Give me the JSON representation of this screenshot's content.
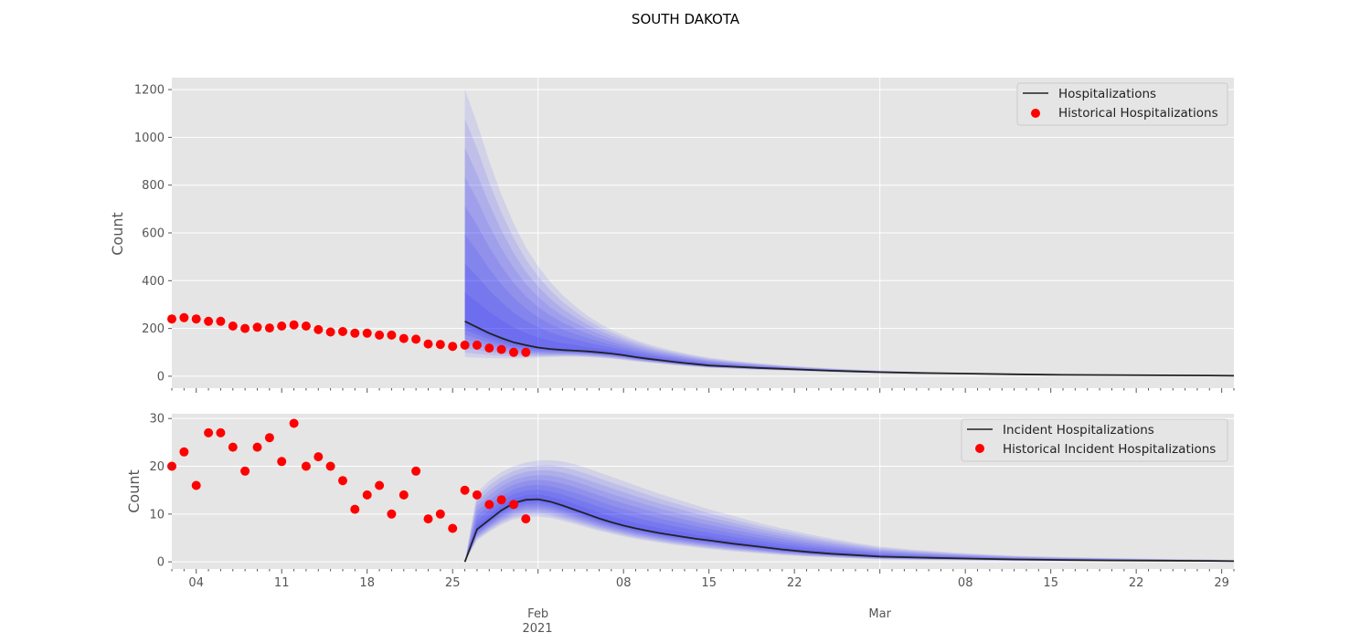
{
  "figure": {
    "suptitle": "SOUTH DAKOTA",
    "x_tick_labels": [
      "04",
      "11",
      "18",
      "25",
      "Feb",
      "08",
      "15",
      "22",
      "Mar",
      "08",
      "15",
      "22",
      "29"
    ],
    "x_year_label": "2021"
  },
  "chart_data": [
    {
      "type": "line",
      "panel": "top",
      "title": "",
      "xlabel": "",
      "ylabel": "Count",
      "ylim": [
        -50,
        1250
      ],
      "yticks": [
        0,
        200,
        400,
        600,
        800,
        1000,
        1200
      ],
      "x_axis": {
        "type": "date",
        "start": "2021-01-02",
        "end": "2021-03-30"
      },
      "grid": true,
      "legend_placement": "upper right",
      "legend": [
        "Hospitalizations",
        "Historical Hospitalizations"
      ],
      "colors": {
        "line": "#222222",
        "points": "#ff0000",
        "band": "#0000ff",
        "background": "#e5e5e5"
      },
      "series": [
        {
          "name": "Hospitalizations",
          "kind": "line",
          "x": [
            "2021-01-26",
            "2021-01-27",
            "2021-01-28",
            "2021-01-29",
            "2021-01-30",
            "2021-01-31",
            "2021-02-01",
            "2021-02-02",
            "2021-02-03",
            "2021-02-04",
            "2021-02-05",
            "2021-02-06",
            "2021-02-07",
            "2021-02-08",
            "2021-02-09",
            "2021-02-10",
            "2021-02-11",
            "2021-02-12",
            "2021-02-13",
            "2021-02-14",
            "2021-02-15",
            "2021-02-17",
            "2021-02-19",
            "2021-02-21",
            "2021-02-23",
            "2021-02-25",
            "2021-02-27",
            "2021-03-01",
            "2021-03-04",
            "2021-03-08",
            "2021-03-12",
            "2021-03-16",
            "2021-03-20",
            "2021-03-24",
            "2021-03-28",
            "2021-03-30"
          ],
          "y": [
            230,
            205,
            180,
            160,
            142,
            130,
            120,
            114,
            110,
            107,
            104,
            100,
            95,
            88,
            80,
            73,
            67,
            61,
            55,
            50,
            45,
            40,
            35,
            31,
            27,
            23,
            20,
            17,
            14,
            11,
            8,
            6,
            5,
            4,
            3,
            2
          ]
        },
        {
          "name": "Historical Hospitalizations",
          "kind": "scatter",
          "x": [
            "2021-01-02",
            "2021-01-03",
            "2021-01-04",
            "2021-01-05",
            "2021-01-06",
            "2021-01-07",
            "2021-01-08",
            "2021-01-09",
            "2021-01-10",
            "2021-01-11",
            "2021-01-12",
            "2021-01-13",
            "2021-01-14",
            "2021-01-15",
            "2021-01-16",
            "2021-01-17",
            "2021-01-18",
            "2021-01-19",
            "2021-01-20",
            "2021-01-21",
            "2021-01-22",
            "2021-01-23",
            "2021-01-24",
            "2021-01-25",
            "2021-01-26",
            "2021-01-27",
            "2021-01-28",
            "2021-01-29",
            "2021-01-30",
            "2021-01-31"
          ],
          "y": [
            240,
            245,
            240,
            230,
            230,
            210,
            200,
            205,
            202,
            210,
            215,
            210,
            195,
            185,
            187,
            180,
            180,
            172,
            172,
            158,
            155,
            135,
            133,
            125,
            130,
            130,
            118,
            112,
            100,
            100
          ]
        }
      ],
      "uncertainty_band": {
        "x": [
          "2021-01-26",
          "2021-01-27",
          "2021-01-28",
          "2021-01-29",
          "2021-01-30",
          "2021-01-31",
          "2021-02-01",
          "2021-02-02",
          "2021-02-03",
          "2021-02-04",
          "2021-02-05",
          "2021-02-06",
          "2021-02-07",
          "2021-02-08",
          "2021-02-09",
          "2021-02-10",
          "2021-02-11",
          "2021-02-12",
          "2021-02-13",
          "2021-02-14",
          "2021-02-15",
          "2021-02-17",
          "2021-02-19",
          "2021-02-21",
          "2021-02-23",
          "2021-02-25",
          "2021-02-27",
          "2021-03-01",
          "2021-03-04",
          "2021-03-08",
          "2021-03-12",
          "2021-03-16",
          "2021-03-20",
          "2021-03-24",
          "2021-03-28",
          "2021-03-30"
        ],
        "upper": [
          1200,
          1060,
          900,
          760,
          640,
          540,
          460,
          395,
          340,
          295,
          255,
          222,
          195,
          172,
          152,
          135,
          120,
          108,
          97,
          87,
          78,
          65,
          55,
          46,
          39,
          33,
          28,
          24,
          19,
          14,
          10,
          8,
          6,
          5,
          4,
          3
        ],
        "lower": [
          80,
          78,
          76,
          75,
          75,
          76,
          78,
          80,
          82,
          82,
          80,
          77,
          73,
          68,
          62,
          57,
          52,
          47,
          43,
          39,
          35,
          31,
          27,
          24,
          21,
          18,
          15,
          13,
          11,
          8,
          6,
          4,
          3,
          3,
          2,
          1
        ]
      }
    },
    {
      "type": "line",
      "panel": "bottom",
      "title": "",
      "xlabel": "",
      "ylabel": "Count",
      "ylim": [
        -1.5,
        31
      ],
      "yticks": [
        0,
        10,
        20,
        30
      ],
      "x_axis": {
        "type": "date",
        "start": "2021-01-02",
        "end": "2021-03-30"
      },
      "grid": true,
      "legend_placement": "upper right",
      "legend": [
        "Incident Hospitalizations",
        "Historical Incident Hospitalizations"
      ],
      "colors": {
        "line": "#222222",
        "points": "#ff0000",
        "band": "#0000ff",
        "background": "#e5e5e5"
      },
      "series": [
        {
          "name": "Incident Hospitalizations",
          "kind": "line",
          "x": [
            "2021-01-26",
            "2021-01-27",
            "2021-01-28",
            "2021-01-29",
            "2021-01-30",
            "2021-01-31",
            "2021-02-01",
            "2021-02-02",
            "2021-02-03",
            "2021-02-04",
            "2021-02-05",
            "2021-02-06",
            "2021-02-07",
            "2021-02-08",
            "2021-02-09",
            "2021-02-10",
            "2021-02-11",
            "2021-02-12",
            "2021-02-13",
            "2021-02-14",
            "2021-02-15",
            "2021-02-17",
            "2021-02-19",
            "2021-02-21",
            "2021-02-23",
            "2021-02-25",
            "2021-02-27",
            "2021-03-01",
            "2021-03-04",
            "2021-03-08",
            "2021-03-12",
            "2021-03-16",
            "2021-03-20",
            "2021-03-24",
            "2021-03-28",
            "2021-03-30"
          ],
          "y": [
            0,
            6.8,
            8.8,
            10.8,
            12.3,
            13.0,
            13.1,
            12.6,
            11.8,
            10.9,
            10.0,
            9.1,
            8.3,
            7.6,
            7.0,
            6.5,
            6.0,
            5.6,
            5.2,
            4.8,
            4.5,
            3.8,
            3.2,
            2.6,
            2.1,
            1.7,
            1.4,
            1.1,
            0.9,
            0.7,
            0.5,
            0.4,
            0.3,
            0.25,
            0.2,
            0.15
          ]
        },
        {
          "name": "Historical Incident Hospitalizations",
          "kind": "scatter",
          "x": [
            "2021-01-02",
            "2021-01-03",
            "2021-01-04",
            "2021-01-05",
            "2021-01-06",
            "2021-01-07",
            "2021-01-08",
            "2021-01-09",
            "2021-01-10",
            "2021-01-11",
            "2021-01-12",
            "2021-01-13",
            "2021-01-14",
            "2021-01-15",
            "2021-01-16",
            "2021-01-17",
            "2021-01-18",
            "2021-01-19",
            "2021-01-20",
            "2021-01-21",
            "2021-01-22",
            "2021-01-23",
            "2021-01-24",
            "2021-01-25",
            "2021-01-26",
            "2021-01-27",
            "2021-01-28",
            "2021-01-29",
            "2021-01-30",
            "2021-01-31"
          ],
          "y": [
            20,
            23,
            16,
            27,
            27,
            24,
            19,
            24,
            26,
            21,
            29,
            20,
            22,
            20,
            17,
            11,
            14,
            16,
            10,
            14,
            19,
            9,
            10,
            7,
            15,
            14,
            12,
            13,
            12,
            9
          ]
        }
      ],
      "uncertainty_band": {
        "x": [
          "2021-01-26",
          "2021-01-27",
          "2021-01-28",
          "2021-01-29",
          "2021-01-30",
          "2021-01-31",
          "2021-02-01",
          "2021-02-02",
          "2021-02-03",
          "2021-02-04",
          "2021-02-05",
          "2021-02-06",
          "2021-02-07",
          "2021-02-08",
          "2021-02-09",
          "2021-02-10",
          "2021-02-11",
          "2021-02-12",
          "2021-02-13",
          "2021-02-14",
          "2021-02-15",
          "2021-02-17",
          "2021-02-19",
          "2021-02-21",
          "2021-02-23",
          "2021-02-25",
          "2021-02-27",
          "2021-03-01",
          "2021-03-04",
          "2021-03-08",
          "2021-03-12",
          "2021-03-16",
          "2021-03-20",
          "2021-03-24",
          "2021-03-28",
          "2021-03-30"
        ],
        "upper": [
          0,
          14.5,
          17.0,
          18.8,
          20.0,
          20.8,
          21.2,
          21.3,
          21.0,
          20.4,
          19.6,
          18.7,
          17.8,
          16.9,
          16.0,
          15.1,
          14.2,
          13.4,
          12.6,
          11.8,
          11.0,
          9.6,
          8.2,
          7.0,
          5.9,
          4.9,
          4.0,
          3.2,
          2.5,
          1.8,
          1.3,
          1.0,
          0.8,
          0.6,
          0.5,
          0.4
        ],
        "lower": [
          0,
          4.5,
          6.3,
          7.8,
          8.9,
          9.4,
          9.5,
          9.2,
          8.6,
          7.9,
          7.2,
          6.5,
          5.9,
          5.3,
          4.8,
          4.4,
          4.0,
          3.6,
          3.3,
          3.0,
          2.7,
          2.2,
          1.8,
          1.4,
          1.1,
          0.9,
          0.7,
          0.5,
          0.4,
          0.3,
          0.2,
          0.15,
          0.1,
          0.08,
          0.06,
          0.05
        ]
      }
    }
  ]
}
